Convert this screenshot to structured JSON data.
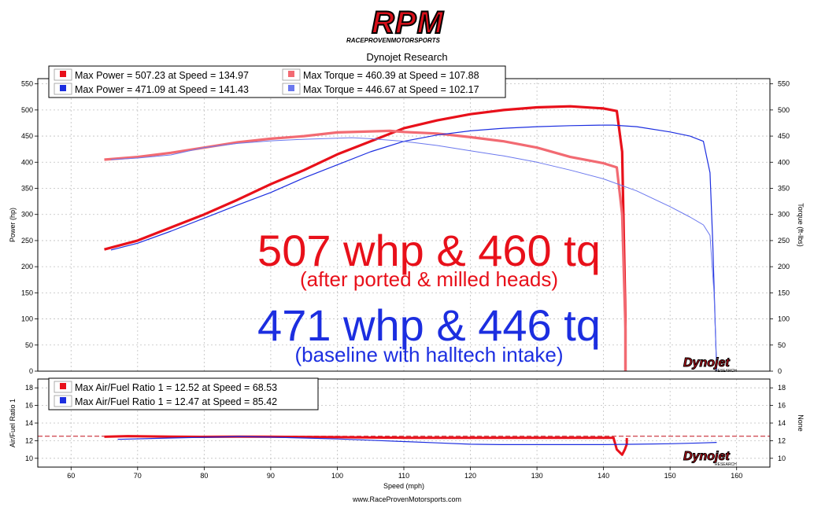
{
  "header": {
    "logo_text": "RPM",
    "logo_subtext": "RACEPROVENMOTORSPORTS",
    "subtitle": "Dynojet Research"
  },
  "footer": {
    "url": "www.RaceProvenMotorsports.com"
  },
  "colors": {
    "red": "#e8101a",
    "light_red": "#f26a72",
    "blue": "#1c2ee0",
    "light_blue": "#6b78ee",
    "grid": "#bfbfbf"
  },
  "chart_data": [
    {
      "type": "line",
      "title": "",
      "xlabel": "",
      "ylabel": "Power (hp)",
      "ylabel_right": "Torque (ft-lbs)",
      "xlim": [
        55,
        165
      ],
      "ylim": [
        0,
        560
      ],
      "y_ticks": [
        0,
        50,
        100,
        150,
        200,
        250,
        300,
        350,
        400,
        450,
        500,
        550
      ],
      "grid": true,
      "legend_position": "top-left",
      "legend": [
        {
          "text": "Max Power = 507.23 at Speed = 134.97",
          "color": "#e8101a"
        },
        {
          "text": "Max Torque = 460.39 at Speed = 107.88",
          "color": "#f26a72"
        },
        {
          "text": "Max Power = 471.09 at Speed = 141.43",
          "color": "#1c2ee0"
        },
        {
          "text": "Max Torque = 446.67 at Speed = 102.17",
          "color": "#6b78ee"
        }
      ],
      "series": [
        {
          "color": "#e8101a",
          "width": 3.2,
          "x": [
            65,
            70,
            75,
            80,
            85,
            90,
            95,
            100,
            105,
            110,
            115,
            120,
            125,
            130,
            135,
            140,
            142,
            142.8,
            143.3,
            143.3
          ],
          "y": [
            233,
            250,
            275,
            300,
            328,
            358,
            385,
            415,
            440,
            465,
            480,
            492,
            500,
            505,
            507,
            503,
            498,
            420,
            100,
            0
          ]
        },
        {
          "color": "#f26a72",
          "width": 3.2,
          "x": [
            65,
            70,
            75,
            80,
            85,
            90,
            95,
            100,
            105,
            107.88,
            110,
            115,
            120,
            125,
            130,
            135,
            140,
            142,
            142.8,
            143.3,
            143.3
          ],
          "y": [
            405,
            410,
            418,
            428,
            438,
            445,
            450,
            457,
            459,
            460,
            458,
            455,
            448,
            440,
            428,
            410,
            398,
            390,
            300,
            80,
            0
          ]
        },
        {
          "color": "#1c2ee0",
          "width": 1.2,
          "x": [
            66,
            70,
            75,
            80,
            85,
            90,
            95,
            100,
            105,
            110,
            115,
            120,
            125,
            130,
            135,
            140,
            141.43,
            145,
            150,
            153,
            155,
            156,
            156.4,
            156.8,
            157
          ],
          "y": [
            232,
            245,
            268,
            293,
            318,
            342,
            370,
            395,
            420,
            440,
            452,
            460,
            465,
            468,
            470,
            471,
            471,
            468,
            458,
            450,
            440,
            380,
            250,
            80,
            0
          ]
        },
        {
          "color": "#6b78ee",
          "width": 1,
          "x": [
            66,
            70,
            75,
            80,
            85,
            90,
            95,
            100,
            102.17,
            105,
            110,
            115,
            120,
            125,
            130,
            135,
            140,
            145,
            150,
            153,
            155,
            156,
            156.6,
            157
          ],
          "y": [
            405,
            408,
            414,
            428,
            436,
            441,
            444,
            446,
            447,
            445,
            440,
            432,
            422,
            412,
            400,
            385,
            368,
            345,
            315,
            295,
            280,
            260,
            150,
            0
          ]
        }
      ]
    },
    {
      "type": "line",
      "title": "",
      "xlabel": "Speed (mph)",
      "ylabel": "Air/Fuel Ratio 1",
      "ylabel_right": "None",
      "xlim": [
        55,
        165
      ],
      "x_ticks": [
        60,
        70,
        80,
        90,
        100,
        110,
        120,
        130,
        140,
        150,
        160
      ],
      "ylim": [
        9,
        19
      ],
      "y_ticks": [
        10,
        12,
        14,
        16,
        18
      ],
      "reference_line": 12.5,
      "grid": true,
      "legend_position": "top-left",
      "legend": [
        {
          "text": "Max Air/Fuel Ratio 1 = 12.52 at Speed = 68.53",
          "color": "#e8101a"
        },
        {
          "text": "Max Air/Fuel Ratio 1 = 12.47 at Speed = 85.42",
          "color": "#1c2ee0"
        }
      ],
      "series": [
        {
          "color": "#e8101a",
          "width": 3,
          "x": [
            65,
            68.53,
            75,
            80,
            85,
            90,
            95,
            100,
            105,
            110,
            115,
            120,
            125,
            130,
            135,
            140,
            141.5,
            142,
            142.8,
            143.2,
            143.5,
            143.5
          ],
          "y": [
            12.45,
            12.52,
            12.46,
            12.44,
            12.46,
            12.45,
            12.43,
            12.4,
            12.36,
            12.33,
            12.33,
            12.33,
            12.33,
            12.33,
            12.33,
            12.33,
            12.33,
            11.0,
            10.4,
            11.0,
            11.6,
            12.3
          ]
        },
        {
          "color": "#1c2ee0",
          "width": 1.2,
          "x": [
            67,
            75,
            80,
            85.42,
            90,
            95,
            100,
            105,
            110,
            115,
            120,
            125,
            130,
            135,
            140,
            145,
            150,
            155,
            157
          ],
          "y": [
            12.15,
            12.3,
            12.38,
            12.47,
            12.4,
            12.3,
            12.2,
            12.05,
            11.9,
            11.75,
            11.6,
            11.55,
            11.55,
            11.55,
            11.55,
            11.6,
            11.65,
            11.75,
            11.8
          ]
        }
      ]
    }
  ],
  "annotations": {
    "red_main": "507 whp & 460 tq",
    "red_sub": "(after ported & milled heads)",
    "blue_main": "471 whp & 446 tq",
    "blue_sub": "(baseline with halltech intake)"
  },
  "brand": {
    "mark": "Dynojet",
    "sub": "RESEARCH"
  }
}
